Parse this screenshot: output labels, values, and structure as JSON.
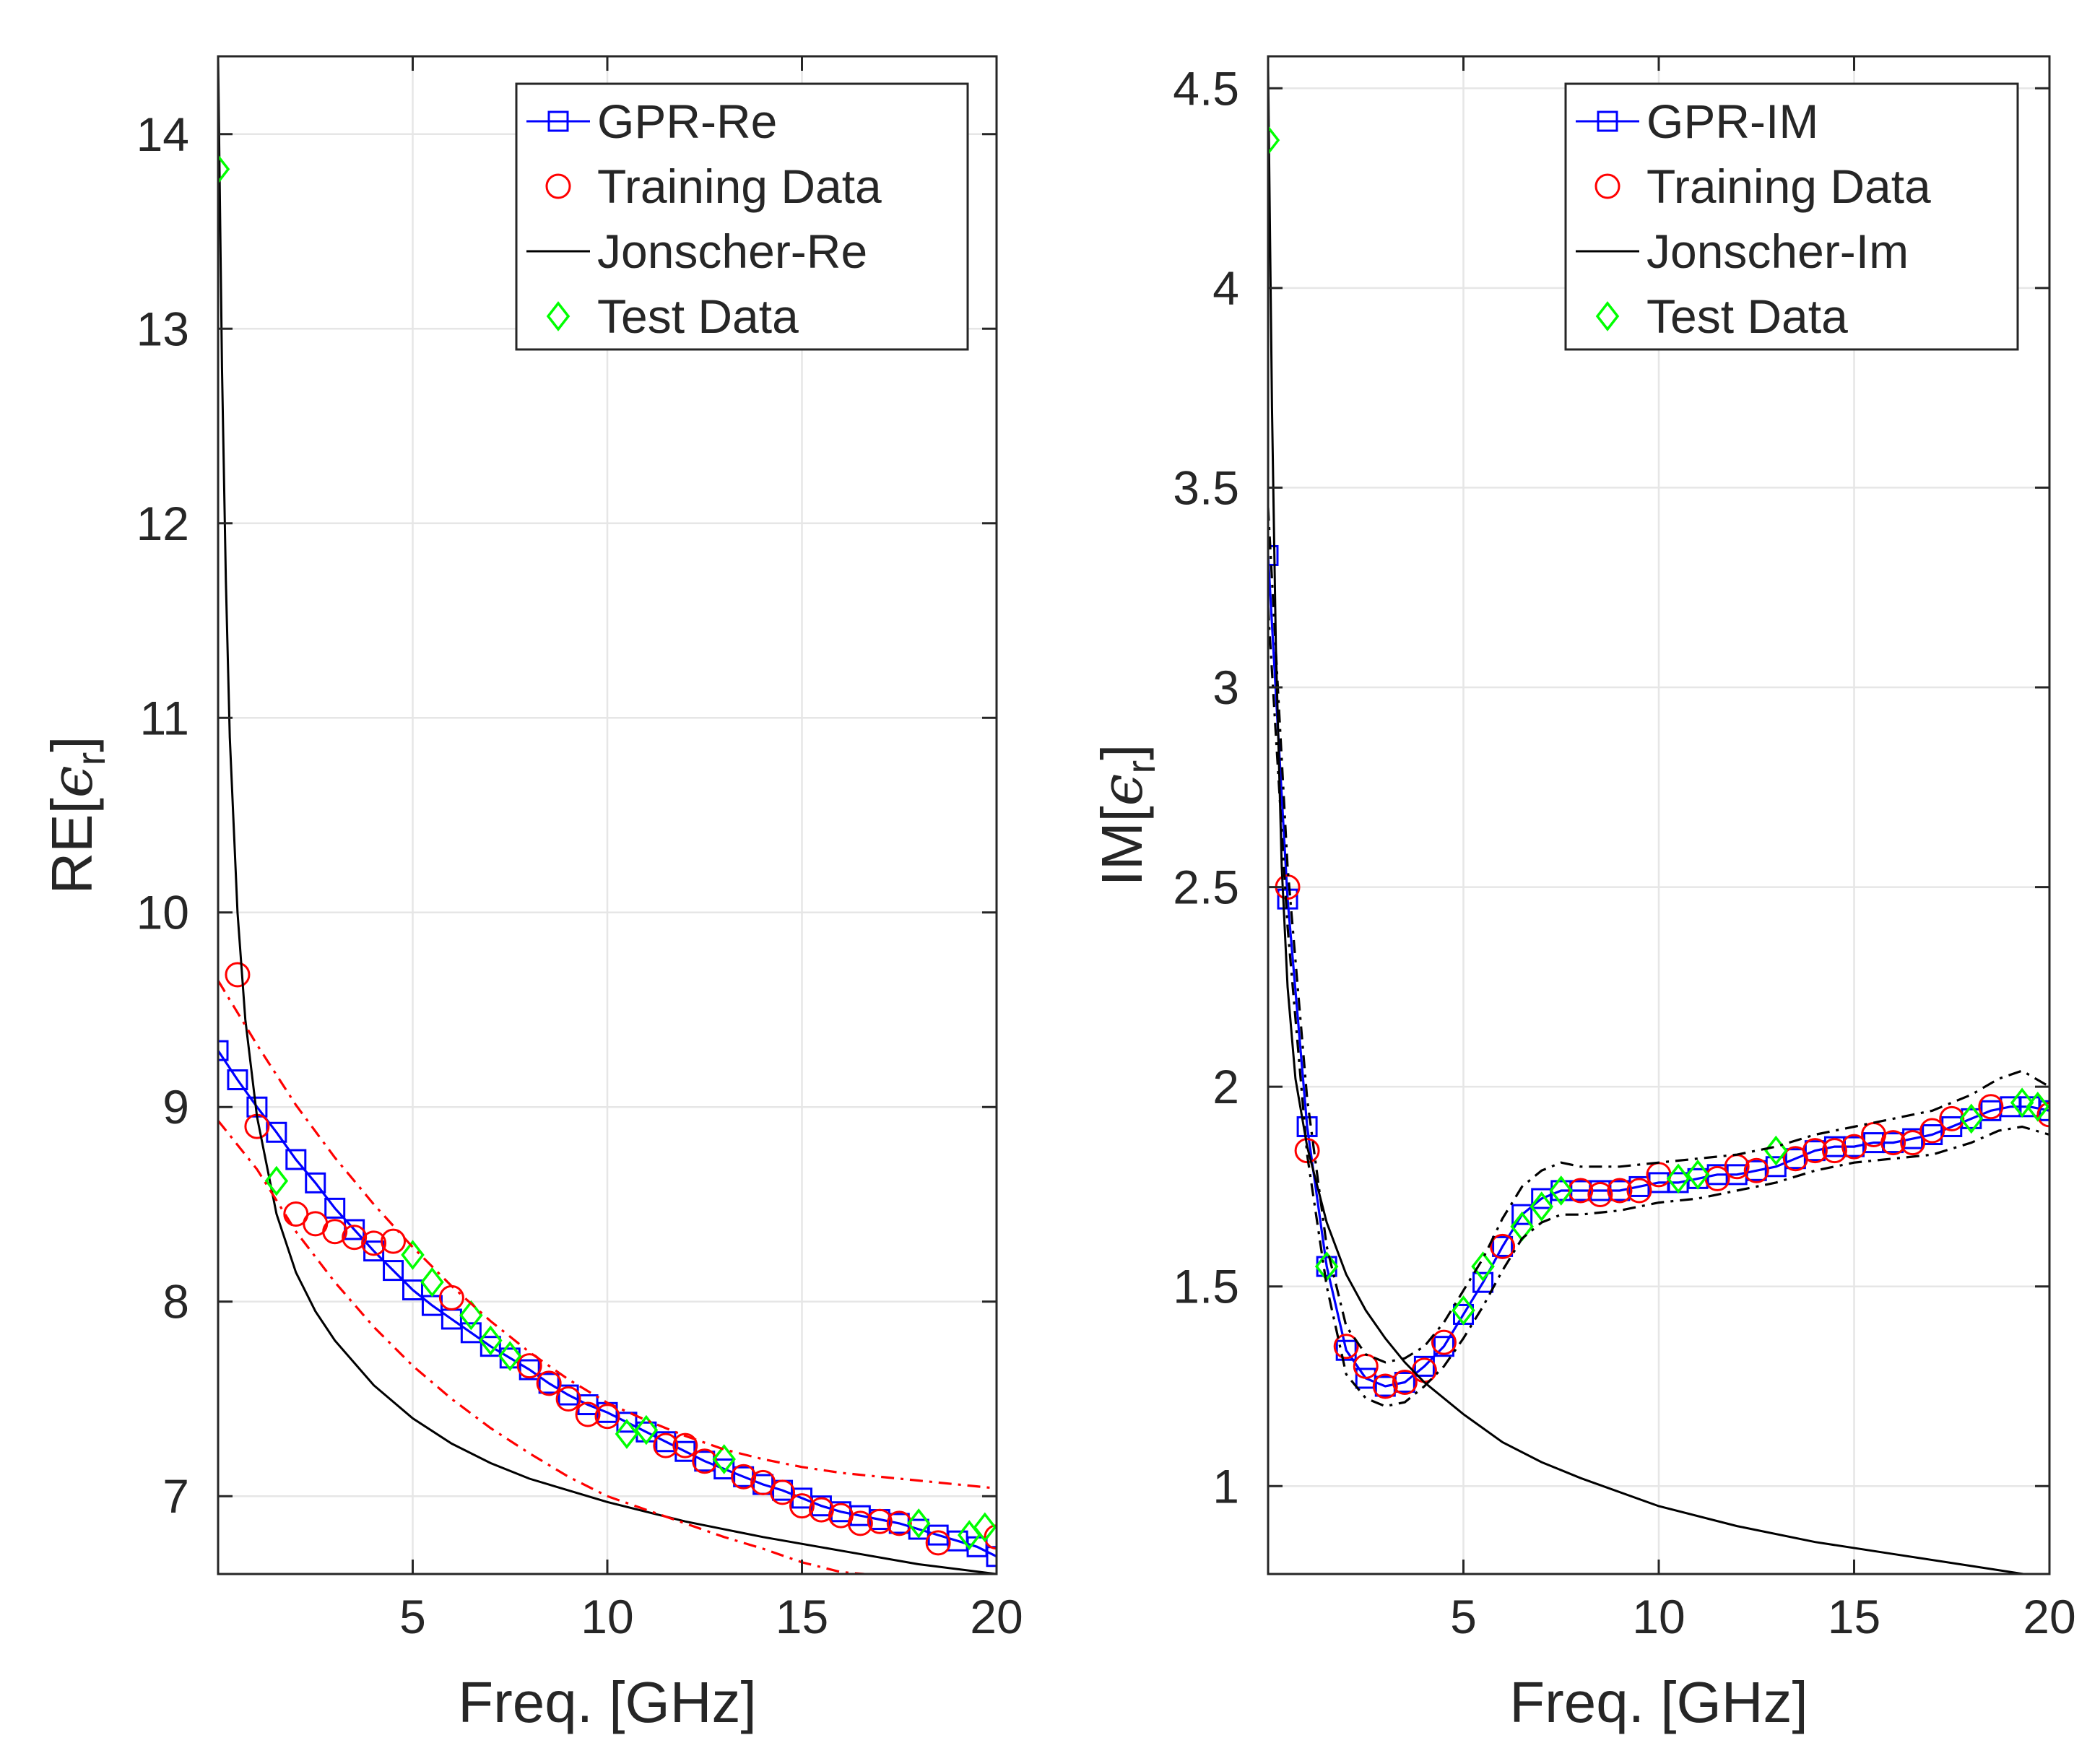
{
  "chart_data": [
    {
      "type": "line",
      "xlabel": "Freq. [GHz]",
      "ylabel": {
        "base": "RE[",
        "sym": "ϵ",
        "sub": "r",
        "close": "]"
      },
      "xlim": [
        0,
        20
      ],
      "ylim": [
        6.6,
        14.4
      ],
      "xticks": [
        5,
        10,
        15,
        20
      ],
      "yticks": [
        7,
        8,
        9,
        10,
        11,
        12,
        13,
        14
      ],
      "grid": true,
      "legend_position": "top-right",
      "legend": [
        "GPR-Re",
        "Training Data",
        "Jonscher-Re",
        "Test Data"
      ],
      "series": [
        {
          "name": "GPR-Re",
          "kind": "line-square",
          "color": "#0000ff",
          "x": [
            0,
            0.5,
            1,
            1.5,
            2,
            2.5,
            3,
            3.5,
            4,
            4.5,
            5,
            5.5,
            6,
            6.5,
            7,
            7.5,
            8,
            8.5,
            9,
            9.5,
            10,
            10.5,
            11,
            11.5,
            12,
            12.5,
            13,
            13.5,
            14,
            14.5,
            15,
            15.5,
            16,
            16.5,
            17,
            17.5,
            18,
            18.5,
            19,
            19.5,
            20
          ],
          "y": [
            9.29,
            9.14,
            9.0,
            8.87,
            8.73,
            8.61,
            8.48,
            8.37,
            8.26,
            8.16,
            8.06,
            7.98,
            7.91,
            7.84,
            7.77,
            7.71,
            7.65,
            7.58,
            7.52,
            7.47,
            7.43,
            7.38,
            7.33,
            7.28,
            7.23,
            7.18,
            7.14,
            7.1,
            7.06,
            7.03,
            6.99,
            6.95,
            6.92,
            6.9,
            6.88,
            6.86,
            6.83,
            6.8,
            6.77,
            6.74,
            6.69
          ]
        },
        {
          "name": "Training Data",
          "kind": "circle",
          "color": "#ff0000",
          "x": [
            0.5,
            1,
            2,
            2.5,
            3,
            3.5,
            4,
            4.5,
            6,
            8,
            8.5,
            9,
            9.5,
            10,
            11.5,
            12,
            12.5,
            13.5,
            14,
            14.5,
            15,
            15.5,
            16,
            16.5,
            17,
            17.5,
            18.5,
            20
          ],
          "y": [
            9.68,
            8.9,
            8.45,
            8.4,
            8.36,
            8.33,
            8.3,
            8.31,
            8.02,
            7.67,
            7.58,
            7.5,
            7.42,
            7.41,
            7.26,
            7.26,
            7.18,
            7.1,
            7.07,
            7.02,
            6.95,
            6.93,
            6.9,
            6.86,
            6.87,
            6.86,
            6.76,
            6.79
          ]
        },
        {
          "name": "Jonscher-Re",
          "kind": "line",
          "color": "#000000",
          "x": [
            0,
            0.1,
            0.2,
            0.3,
            0.5,
            0.7,
            1,
            1.5,
            2,
            2.5,
            3,
            4,
            5,
            6,
            7,
            8,
            10,
            12,
            14,
            16,
            18,
            20
          ],
          "y": [
            14.4,
            12.8,
            11.7,
            10.9,
            10.0,
            9.45,
            8.95,
            8.45,
            8.15,
            7.95,
            7.8,
            7.57,
            7.4,
            7.27,
            7.17,
            7.09,
            6.97,
            6.87,
            6.79,
            6.72,
            6.65,
            6.6
          ]
        },
        {
          "name": "Test Data",
          "kind": "diamond",
          "color": "#00ff00",
          "x": [
            0,
            1.5,
            5,
            5.5,
            6.5,
            7,
            7.5,
            10.5,
            11,
            13,
            18,
            19.3,
            19.7
          ],
          "y": [
            13.82,
            8.62,
            8.24,
            8.1,
            7.93,
            7.8,
            7.72,
            7.32,
            7.34,
            7.19,
            6.86,
            6.8,
            6.84
          ]
        },
        {
          "name": "upper-band",
          "kind": "dashdot",
          "color": "#ff0000",
          "x": [
            0,
            1,
            2,
            3,
            4,
            5,
            6,
            7,
            8,
            9,
            10,
            11,
            12,
            13,
            14,
            15,
            16,
            17,
            18,
            19,
            20
          ],
          "y": [
            9.65,
            9.32,
            9.01,
            8.74,
            8.5,
            8.28,
            8.08,
            7.9,
            7.74,
            7.6,
            7.48,
            7.39,
            7.31,
            7.24,
            7.19,
            7.15,
            7.12,
            7.1,
            7.08,
            7.06,
            7.04
          ]
        },
        {
          "name": "lower-band",
          "kind": "dashdot",
          "color": "#ff0000",
          "x": [
            0,
            1,
            1.5,
            2,
            3,
            4,
            5,
            6,
            7,
            8,
            9,
            10,
            11,
            12,
            13,
            14,
            15,
            16,
            16.6
          ],
          "y": [
            8.93,
            8.68,
            8.52,
            8.36,
            8.1,
            7.87,
            7.67,
            7.5,
            7.35,
            7.22,
            7.1,
            7.0,
            6.93,
            6.86,
            6.79,
            6.73,
            6.66,
            6.61,
            6.6
          ]
        }
      ]
    },
    {
      "type": "line",
      "xlabel": "Freq. [GHz]",
      "ylabel": {
        "base": "IM[",
        "sym": "ϵ",
        "sub": "r",
        "close": "]"
      },
      "xlim": [
        0,
        20
      ],
      "ylim": [
        0.78,
        4.58
      ],
      "xticks": [
        5,
        10,
        15,
        20
      ],
      "yticks": [
        1,
        1.5,
        2,
        2.5,
        3,
        3.5,
        4,
        4.5
      ],
      "grid": true,
      "legend_position": "top-right",
      "legend": [
        "GPR-IM",
        "Training Data",
        "Jonscher-Im",
        "Test Data"
      ],
      "series": [
        {
          "name": "GPR-IM",
          "kind": "line-square",
          "color": "#0000ff",
          "x": [
            0,
            0.5,
            1,
            1.5,
            2,
            2.5,
            3,
            3.5,
            4,
            4.5,
            5,
            5.5,
            6,
            6.5,
            7,
            7.5,
            8,
            8.5,
            9,
            9.5,
            10,
            10.5,
            11,
            11.5,
            12,
            12.5,
            13,
            13.5,
            14,
            14.5,
            15,
            15.5,
            16,
            16.5,
            17,
            17.5,
            18,
            18.5,
            19,
            19.5,
            20
          ],
          "y": [
            3.33,
            2.47,
            1.9,
            1.55,
            1.34,
            1.27,
            1.25,
            1.26,
            1.3,
            1.35,
            1.43,
            1.51,
            1.6,
            1.68,
            1.72,
            1.74,
            1.74,
            1.74,
            1.74,
            1.75,
            1.76,
            1.76,
            1.77,
            1.78,
            1.78,
            1.79,
            1.8,
            1.82,
            1.84,
            1.85,
            1.85,
            1.86,
            1.86,
            1.87,
            1.88,
            1.9,
            1.92,
            1.94,
            1.95,
            1.95,
            1.94
          ]
        },
        {
          "name": "Training Data",
          "kind": "circle",
          "color": "#ff0000",
          "x": [
            0.5,
            1,
            2,
            2.5,
            3,
            3.5,
            4,
            4.5,
            6,
            8,
            8.5,
            9,
            9.5,
            10,
            11.5,
            12,
            12.5,
            13.5,
            14,
            14.5,
            15,
            15.5,
            16,
            16.5,
            17,
            17.5,
            18.5,
            20
          ],
          "y": [
            2.5,
            1.84,
            1.35,
            1.3,
            1.25,
            1.26,
            1.29,
            1.36,
            1.6,
            1.74,
            1.73,
            1.74,
            1.74,
            1.78,
            1.77,
            1.8,
            1.79,
            1.82,
            1.84,
            1.84,
            1.85,
            1.88,
            1.86,
            1.86,
            1.89,
            1.92,
            1.95,
            1.93
          ]
        },
        {
          "name": "Jonscher-Im",
          "kind": "line",
          "color": "#000000",
          "x": [
            0,
            0.1,
            0.2,
            0.35,
            0.5,
            0.7,
            1,
            1.5,
            2,
            2.5,
            3,
            3.5,
            4,
            5,
            6,
            7,
            8,
            10,
            12,
            14,
            16,
            18,
            20
          ],
          "y": [
            4.55,
            3.7,
            3.1,
            2.55,
            2.25,
            2.02,
            1.85,
            1.66,
            1.53,
            1.44,
            1.37,
            1.31,
            1.26,
            1.18,
            1.11,
            1.06,
            1.02,
            0.95,
            0.9,
            0.86,
            0.83,
            0.8,
            0.77
          ]
        },
        {
          "name": "Test Data",
          "kind": "diamond",
          "color": "#00ff00",
          "x": [
            0,
            1.5,
            5,
            5.5,
            6.5,
            7,
            7.5,
            10.5,
            11,
            13,
            18,
            19.3,
            19.7
          ],
          "y": [
            4.37,
            1.55,
            1.44,
            1.55,
            1.65,
            1.7,
            1.74,
            1.77,
            1.78,
            1.84,
            1.92,
            1.96,
            1.95
          ]
        },
        {
          "name": "upper-band",
          "kind": "dashdot",
          "color": "#000000",
          "x": [
            0,
            0.5,
            1,
            1.5,
            2,
            2.5,
            3,
            3.5,
            4,
            4.5,
            5,
            5.5,
            6,
            6.5,
            7,
            7.5,
            8,
            9,
            10,
            11,
            12,
            13,
            14,
            15,
            16,
            17,
            18,
            18.7,
            19.3,
            20
          ],
          "y": [
            3.45,
            2.55,
            1.97,
            1.6,
            1.4,
            1.33,
            1.31,
            1.32,
            1.35,
            1.41,
            1.49,
            1.57,
            1.67,
            1.75,
            1.79,
            1.81,
            1.8,
            1.8,
            1.81,
            1.82,
            1.83,
            1.85,
            1.88,
            1.9,
            1.92,
            1.94,
            1.98,
            2.02,
            2.04,
            2.0
          ]
        },
        {
          "name": "lower-band",
          "kind": "dashdot",
          "color": "#000000",
          "x": [
            0,
            0.5,
            1,
            1.5,
            2,
            2.5,
            3,
            3.5,
            4,
            4.5,
            5,
            5.5,
            6,
            6.5,
            7,
            7.5,
            8,
            9,
            10,
            11,
            12,
            13,
            14,
            15,
            16,
            17,
            18,
            18.7,
            19.3,
            20
          ],
          "y": [
            3.2,
            2.4,
            1.83,
            1.5,
            1.28,
            1.22,
            1.2,
            1.21,
            1.25,
            1.3,
            1.37,
            1.45,
            1.54,
            1.62,
            1.66,
            1.68,
            1.68,
            1.69,
            1.71,
            1.72,
            1.74,
            1.76,
            1.79,
            1.81,
            1.82,
            1.83,
            1.86,
            1.89,
            1.9,
            1.88
          ]
        }
      ]
    }
  ]
}
